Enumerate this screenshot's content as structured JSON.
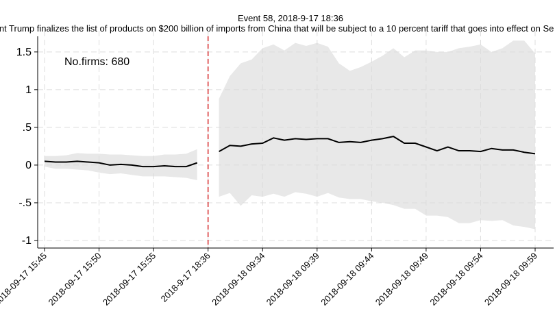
{
  "chart_data": {
    "type": "line",
    "title": "Event 58, 2018-9-17 18:36",
    "subtitle": "ent Trump finalizes the list of products on $200 billion of imports from China that will be subject to a 10 percent tariff that goes into effect on Se",
    "annotation": "No.firms: 680",
    "categories": [
      "2018-09-17 15:45",
      null,
      null,
      null,
      null,
      "2018-09-17 15:50",
      null,
      null,
      null,
      null,
      "2018-09-17 15:55",
      null,
      null,
      null,
      null,
      "2018-9-17 18:36",
      null,
      null,
      null,
      null,
      "2018-09-18 09:34",
      null,
      null,
      null,
      null,
      "2018-09-18 09:39",
      null,
      null,
      null,
      null,
      "2018-09-18 09:44",
      null,
      null,
      null,
      null,
      "2018-09-18 09:49",
      null,
      null,
      null,
      null,
      "2018-09-18 09:54",
      null,
      null,
      null,
      null,
      "2018-09-18 09:59"
    ],
    "values": [
      0.05,
      0.04,
      0.04,
      0.05,
      0.04,
      0.03,
      0.0,
      0.01,
      0.0,
      -0.02,
      -0.02,
      -0.01,
      -0.02,
      -0.02,
      0.03,
      null,
      0.18,
      0.26,
      0.25,
      0.28,
      0.29,
      0.36,
      0.33,
      0.35,
      0.34,
      0.35,
      0.35,
      0.3,
      0.31,
      0.3,
      0.33,
      0.35,
      0.38,
      0.29,
      0.29,
      0.24,
      0.19,
      0.24,
      0.19,
      0.19,
      0.18,
      0.22,
      0.2,
      0.2,
      0.17,
      0.15
    ],
    "ci_upper": [
      0.12,
      0.12,
      0.13,
      0.16,
      0.15,
      0.15,
      0.14,
      0.14,
      0.13,
      0.12,
      0.12,
      0.14,
      0.14,
      0.15,
      0.21,
      null,
      0.88,
      1.18,
      1.35,
      1.4,
      1.55,
      1.6,
      1.52,
      1.62,
      1.58,
      1.62,
      1.57,
      1.35,
      1.25,
      1.3,
      1.37,
      1.45,
      1.55,
      1.43,
      1.52,
      1.52,
      1.5,
      1.5,
      1.55,
      1.57,
      1.6,
      1.5,
      1.55,
      1.65,
      1.65,
      1.48
    ],
    "ci_lower": [
      -0.02,
      -0.05,
      -0.05,
      -0.06,
      -0.07,
      -0.1,
      -0.12,
      -0.11,
      -0.13,
      -0.15,
      -0.15,
      -0.15,
      -0.16,
      -0.17,
      -0.2,
      null,
      -0.42,
      -0.37,
      -0.54,
      -0.4,
      -0.42,
      -0.38,
      -0.42,
      -0.36,
      -0.38,
      -0.42,
      -0.37,
      -0.43,
      -0.45,
      -0.45,
      -0.48,
      -0.5,
      -0.53,
      -0.58,
      -0.58,
      -0.67,
      -0.67,
      -0.69,
      -0.77,
      -0.77,
      -0.73,
      -0.74,
      -0.73,
      -0.8,
      -0.82,
      -0.85
    ],
    "color": "#000000",
    "band_color": "#e8e8e8",
    "event_category": "2018-9-17 18:36",
    "event_color": "#d62728",
    "ylim": [
      -1.1,
      1.78
    ],
    "yticks": [
      -1,
      {
        "value": -0.5,
        "label": "-.5"
      },
      0,
      {
        "value": 0.5,
        "label": ".5"
      },
      1,
      1.5
    ],
    "grid": true
  }
}
